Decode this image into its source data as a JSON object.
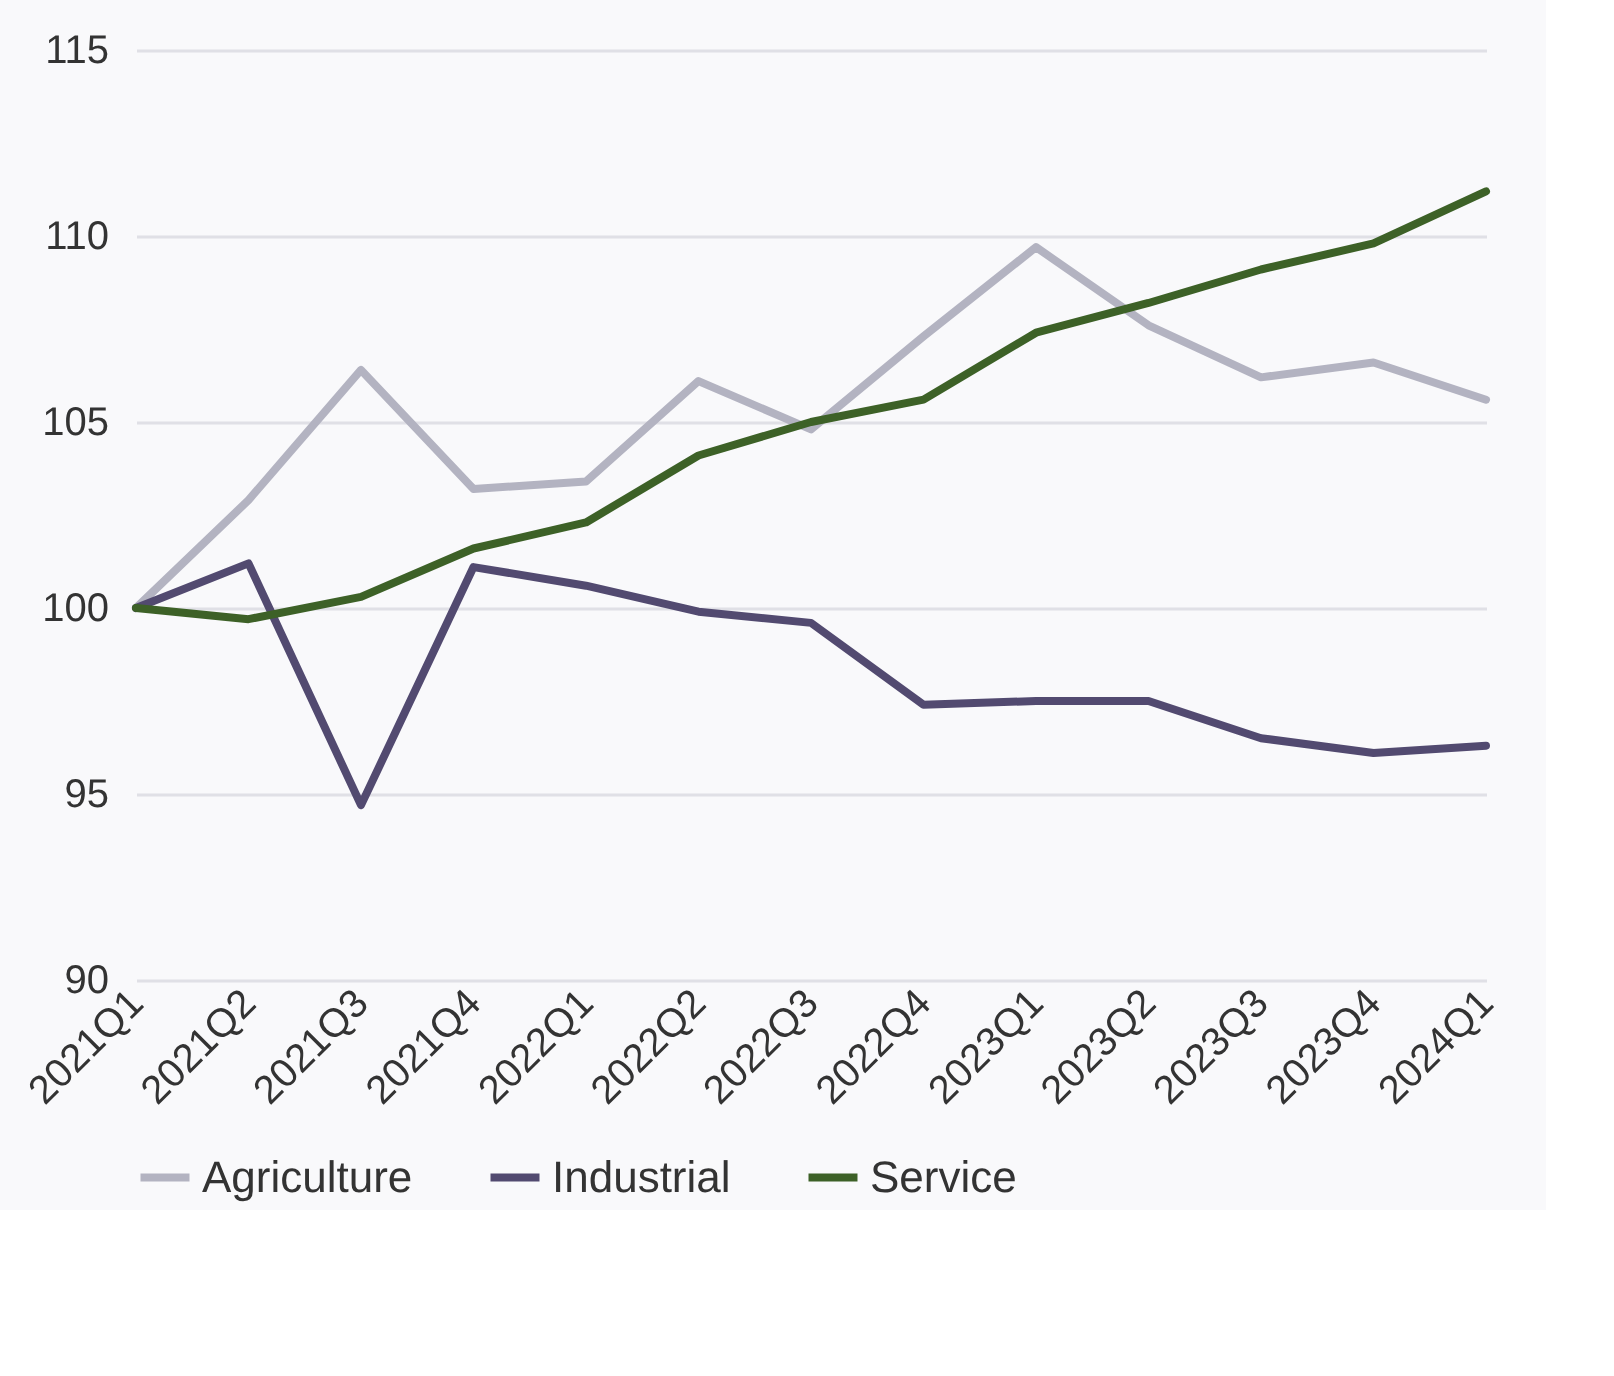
{
  "chart_data": {
    "type": "line",
    "categories": [
      "2021Q1",
      "2021Q2",
      "2021Q3",
      "2021Q4",
      "2022Q1",
      "2022Q2",
      "2022Q3",
      "2022Q4",
      "2023Q1",
      "2023Q2",
      "2023Q3",
      "2023Q4",
      "2024Q1"
    ],
    "series": [
      {
        "name": "Agriculture",
        "color": "#b3b3c1",
        "values": [
          100,
          102.9,
          106.4,
          103.2,
          103.4,
          106.1,
          104.8,
          107.3,
          109.7,
          107.6,
          106.2,
          106.6,
          105.6
        ]
      },
      {
        "name": "Industrial",
        "color": "#524a70",
        "values": [
          100,
          101.2,
          94.7,
          101.1,
          100.6,
          99.9,
          99.6,
          97.4,
          97.5,
          97.5,
          96.5,
          96.1,
          96.3
        ]
      },
      {
        "name": "Service",
        "color": "#3d6127",
        "values": [
          100,
          99.7,
          100.3,
          101.6,
          102.3,
          104.1,
          105.0,
          105.6,
          107.4,
          108.2,
          109.1,
          109.8,
          111.2
        ]
      }
    ],
    "ylim": [
      90,
      115
    ],
    "yticks": [
      90,
      95,
      100,
      105,
      110,
      115
    ],
    "grid": "y",
    "legend": "bottom",
    "marker": "none",
    "line_style": "solid"
  }
}
